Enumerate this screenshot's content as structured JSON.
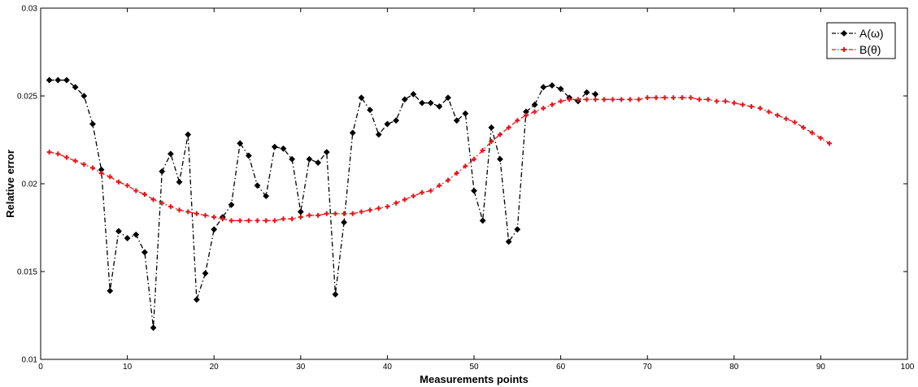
{
  "chart_data": {
    "type": "line",
    "title": "",
    "xlabel": "Measurements points",
    "ylabel": "Relative error",
    "xlim": [
      0,
      100
    ],
    "ylim": [
      0.01,
      0.03
    ],
    "x_ticks": [
      "0",
      "10",
      "20",
      "30",
      "40",
      "50",
      "60",
      "70",
      "80",
      "90",
      "100"
    ],
    "y_ticks": [
      "0.01",
      "0.015",
      "0.02",
      "0.025",
      "0.03"
    ],
    "grid": false,
    "legend_position": "top-right",
    "series": [
      {
        "name": "A(ω)",
        "color": "#000000",
        "line_style": "dash-dot",
        "marker": "diamond",
        "x": [
          1,
          2,
          3,
          4,
          5,
          6,
          7,
          8,
          9,
          10,
          11,
          12,
          13,
          14,
          15,
          16,
          17,
          18,
          19,
          20,
          21,
          22,
          23,
          24,
          25,
          26,
          27,
          28,
          29,
          30,
          31,
          32,
          33,
          34,
          35,
          36,
          37,
          38,
          39,
          40,
          41,
          42,
          43,
          44,
          45,
          46,
          47,
          48,
          49,
          50,
          51,
          52,
          53,
          54,
          55,
          56,
          57,
          58,
          59,
          60,
          61,
          62,
          63,
          64
        ],
        "y": [
          0.0259,
          0.0259,
          0.0259,
          0.0255,
          0.025,
          0.0234,
          0.0208,
          0.0139,
          0.0173,
          0.0169,
          0.0171,
          0.0161,
          0.0118,
          0.0207,
          0.0217,
          0.0201,
          0.0228,
          0.0134,
          0.0149,
          0.0174,
          0.0181,
          0.0188,
          0.0223,
          0.0216,
          0.0199,
          0.0193,
          0.0221,
          0.022,
          0.0214,
          0.0184,
          0.0214,
          0.0212,
          0.0218,
          0.0137,
          0.0178,
          0.0229,
          0.0249,
          0.0242,
          0.0228,
          0.0234,
          0.0236,
          0.0248,
          0.0251,
          0.0246,
          0.0246,
          0.0244,
          0.0249,
          0.0236,
          0.024,
          0.0196,
          0.0179,
          0.0232,
          0.0214,
          0.0167,
          0.0174,
          0.0241,
          0.0245,
          0.0255,
          0.0256,
          0.0254,
          0.0249,
          0.0247,
          0.0252,
          0.0251
        ]
      },
      {
        "name": "B(θ)",
        "color": "#e8141a",
        "line_style": "dash-dot",
        "marker": "plus",
        "x": [
          1,
          2,
          3,
          4,
          5,
          6,
          7,
          8,
          9,
          10,
          11,
          12,
          13,
          14,
          15,
          16,
          17,
          18,
          19,
          20,
          21,
          22,
          23,
          24,
          25,
          26,
          27,
          28,
          29,
          30,
          31,
          32,
          33,
          34,
          35,
          36,
          37,
          38,
          39,
          40,
          41,
          42,
          43,
          44,
          45,
          46,
          47,
          48,
          49,
          50,
          51,
          52,
          53,
          54,
          55,
          56,
          57,
          58,
          59,
          60,
          61,
          62,
          63,
          64,
          65,
          66,
          67,
          68,
          69,
          70,
          71,
          72,
          73,
          74,
          75,
          76,
          77,
          78,
          79,
          80,
          81,
          82,
          83,
          84,
          85,
          86,
          87,
          88,
          89,
          90,
          91
        ],
        "y": [
          0.0218,
          0.0217,
          0.0215,
          0.0213,
          0.0211,
          0.0209,
          0.0206,
          0.0204,
          0.0201,
          0.0199,
          0.0196,
          0.0194,
          0.0191,
          0.0189,
          0.0187,
          0.0185,
          0.0184,
          0.0183,
          0.0182,
          0.0181,
          0.018,
          0.0179,
          0.0179,
          0.0179,
          0.0179,
          0.0179,
          0.0179,
          0.018,
          0.018,
          0.0181,
          0.0182,
          0.0182,
          0.0183,
          0.0183,
          0.0183,
          0.0183,
          0.0184,
          0.0185,
          0.0186,
          0.0187,
          0.0189,
          0.0191,
          0.0193,
          0.0195,
          0.0196,
          0.0199,
          0.0202,
          0.0206,
          0.021,
          0.0214,
          0.0219,
          0.0224,
          0.0228,
          0.0232,
          0.0236,
          0.0239,
          0.0241,
          0.0243,
          0.0245,
          0.0247,
          0.0248,
          0.0248,
          0.0248,
          0.0248,
          0.0248,
          0.0248,
          0.0248,
          0.0248,
          0.0248,
          0.0249,
          0.0249,
          0.0249,
          0.0249,
          0.0249,
          0.0249,
          0.0248,
          0.0248,
          0.0247,
          0.0247,
          0.0246,
          0.0245,
          0.0244,
          0.0243,
          0.0241,
          0.0239,
          0.0237,
          0.0235,
          0.0232,
          0.0229,
          0.0226,
          0.0223
        ]
      }
    ]
  }
}
